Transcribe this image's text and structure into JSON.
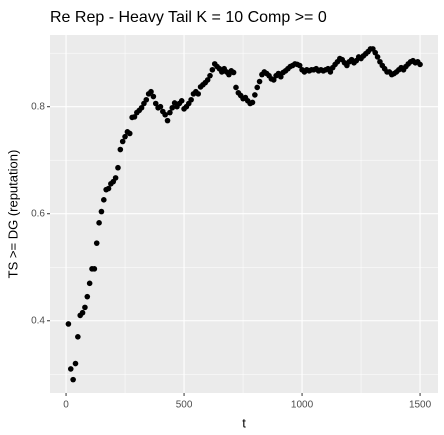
{
  "chart_data": {
    "type": "scatter",
    "title": "Re Rep - Heavy Tail K = 10 Comp >= 0",
    "x_label": "t",
    "y_label": "TS  >=  DG (reputation)",
    "color": "#000000",
    "grid": true,
    "xlim": [
      -68,
      1576
    ],
    "ylim": [
      0.265,
      0.934
    ],
    "xticks": [
      0,
      500,
      1000,
      1500
    ],
    "yticks": [
      0.4,
      0.6,
      0.8
    ],
    "x": [
      10,
      20,
      30,
      40,
      50,
      60,
      70,
      80,
      90,
      100,
      110,
      120,
      130,
      140,
      150,
      160,
      170,
      180,
      190,
      200,
      210,
      220,
      230,
      240,
      250,
      260,
      270,
      280,
      290,
      300,
      310,
      320,
      330,
      340,
      350,
      360,
      370,
      380,
      390,
      400,
      410,
      420,
      430,
      440,
      450,
      460,
      470,
      480,
      490,
      500,
      510,
      520,
      530,
      540,
      550,
      560,
      570,
      580,
      590,
      600,
      610,
      620,
      630,
      640,
      650,
      660,
      670,
      680,
      690,
      700,
      710,
      720,
      730,
      740,
      750,
      760,
      770,
      780,
      790,
      800,
      810,
      820,
      830,
      840,
      850,
      860,
      870,
      880,
      890,
      900,
      910,
      920,
      930,
      940,
      950,
      960,
      970,
      980,
      990,
      1000,
      1010,
      1020,
      1030,
      1040,
      1050,
      1060,
      1070,
      1080,
      1090,
      1100,
      1110,
      1120,
      1130,
      1140,
      1150,
      1160,
      1170,
      1180,
      1190,
      1200,
      1210,
      1220,
      1230,
      1240,
      1250,
      1260,
      1270,
      1280,
      1290,
      1300,
      1310,
      1320,
      1330,
      1340,
      1350,
      1360,
      1370,
      1380,
      1390,
      1400,
      1410,
      1420,
      1430,
      1440,
      1450,
      1460,
      1470,
      1480,
      1490,
      1500
    ],
    "values": [
      0.394,
      0.31,
      0.29,
      0.32,
      0.37,
      0.41,
      0.415,
      0.425,
      0.445,
      0.47,
      0.497,
      0.497,
      0.545,
      0.583,
      0.604,
      0.626,
      0.645,
      0.647,
      0.656,
      0.66,
      0.667,
      0.686,
      0.72,
      0.735,
      0.744,
      0.753,
      0.75,
      0.78,
      0.781,
      0.789,
      0.793,
      0.798,
      0.806,
      0.813,
      0.824,
      0.828,
      0.819,
      0.806,
      0.798,
      0.8,
      0.791,
      0.785,
      0.774,
      0.789,
      0.798,
      0.807,
      0.8,
      0.806,
      0.811,
      0.796,
      0.8,
      0.806,
      0.813,
      0.824,
      0.828,
      0.824,
      0.837,
      0.841,
      0.845,
      0.85,
      0.858,
      0.869,
      0.88,
      0.875,
      0.871,
      0.865,
      0.871,
      0.865,
      0.86,
      0.867,
      0.864,
      0.836,
      0.826,
      0.821,
      0.815,
      0.817,
      0.811,
      0.806,
      0.808,
      0.822,
      0.836,
      0.847,
      0.86,
      0.865,
      0.862,
      0.858,
      0.852,
      0.85,
      0.858,
      0.862,
      0.856,
      0.864,
      0.867,
      0.871,
      0.875,
      0.877,
      0.88,
      0.879,
      0.877,
      0.869,
      0.865,
      0.869,
      0.867,
      0.869,
      0.869,
      0.871,
      0.867,
      0.869,
      0.867,
      0.869,
      0.871,
      0.865,
      0.873,
      0.879,
      0.884,
      0.89,
      0.888,
      0.882,
      0.877,
      0.884,
      0.888,
      0.882,
      0.886,
      0.893,
      0.89,
      0.895,
      0.899,
      0.903,
      0.908,
      0.908,
      0.901,
      0.893,
      0.884,
      0.877,
      0.871,
      0.865,
      0.865,
      0.86,
      0.862,
      0.865,
      0.869,
      0.873,
      0.869,
      0.875,
      0.88,
      0.884,
      0.886,
      0.882,
      0.884,
      0.879
    ]
  }
}
